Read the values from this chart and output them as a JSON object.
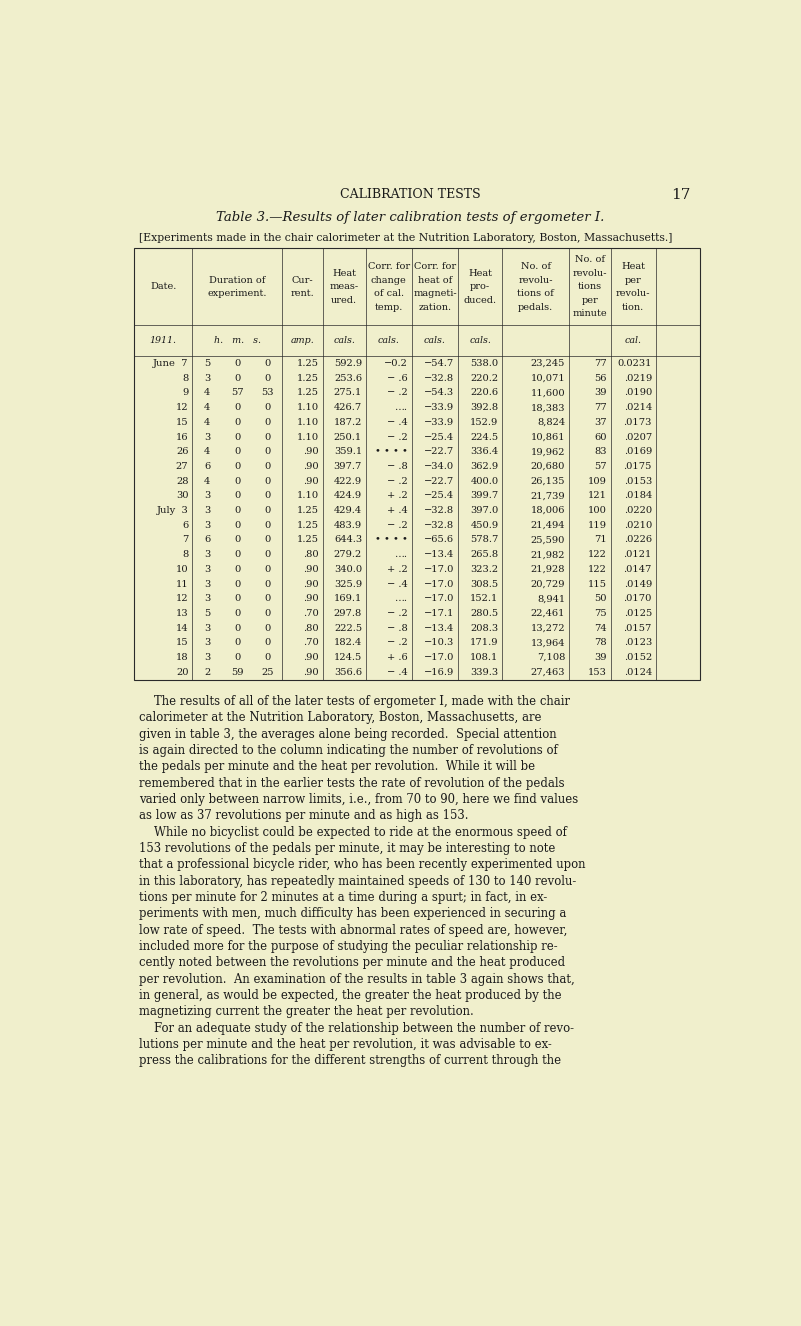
{
  "bg_color": "#f0efcc",
  "page_number": "17",
  "header": "CALIBRATION TESTS",
  "table_title": "Table 3.—Results of later calibration tests of ergometer I.",
  "table_subtitle": "[Experiments made in the chair calorimeter at the Nutrition Laboratory, Boston, Massachusetts.]",
  "col_header_texts": [
    [
      "Date."
    ],
    [
      "Duration of",
      "experiment."
    ],
    [
      "Cur-",
      "rent."
    ],
    [
      "Heat",
      "meas-",
      "ured."
    ],
    [
      "Corr. for",
      "change",
      "of cal.",
      "temp."
    ],
    [
      "Corr. for",
      "heat of",
      "magneti-",
      "zation."
    ],
    [
      "Heat",
      "pro-",
      "duced."
    ],
    [
      "No. of",
      "revolu-",
      "tions of",
      "pedals."
    ],
    [
      "No. of",
      "revolu-",
      "tions",
      "per",
      "minute"
    ],
    [
      "Heat",
      "per",
      "revolu-",
      "tion."
    ]
  ],
  "units_texts": [
    "1911.",
    "h.   m.   s.",
    "amp.",
    "cals.",
    "cals.",
    "cals.",
    "cals.",
    "",
    "",
    "cal."
  ],
  "rows": [
    [
      "June  7",
      "5   0   0",
      "1.25",
      "592.9",
      "−0.2",
      "−54.7",
      "538.0",
      "23,245",
      "77",
      "0.0231"
    ],
    [
      "8",
      "3   0   0",
      "1.25",
      "253.6",
      "− .6",
      "−32.8",
      "220.2",
      "10,071",
      "56",
      ".0219"
    ],
    [
      "9",
      "4  57  53",
      "1.25",
      "275.1",
      "− .2",
      "−54.3",
      "220.6",
      "11,600",
      "39",
      ".0190"
    ],
    [
      "12",
      "4   0   0",
      "1.10",
      "426.7",
      "….",
      "−33.9",
      "392.8",
      "18,383",
      "77",
      ".0214"
    ],
    [
      "15",
      "4   0   0",
      "1.10",
      "187.2",
      "− .4",
      "−33.9",
      "152.9",
      "8,824",
      "37",
      ".0173"
    ],
    [
      "16",
      "3   0   0",
      "1.10",
      "250.1",
      "− .2",
      "−25.4",
      "224.5",
      "10,861",
      "60",
      ".0207"
    ],
    [
      "26",
      "4   0   0",
      ".90",
      "359.1",
      "• • • •",
      "−22.7",
      "336.4",
      "19,962",
      "83",
      ".0169"
    ],
    [
      "27",
      "6   0   0",
      ".90",
      "397.7",
      "− .8",
      "−34.0",
      "362.9",
      "20,680",
      "57",
      ".0175"
    ],
    [
      "28",
      "4   0   0",
      ".90",
      "422.9",
      "− .2",
      "−22.7",
      "400.0",
      "26,135",
      "109",
      ".0153"
    ],
    [
      "30",
      "3   0   0",
      "1.10",
      "424.9",
      "+ .2",
      "−25.4",
      "399.7",
      "21,739",
      "121",
      ".0184"
    ],
    [
      "July  3",
      "3   0   0",
      "1.25",
      "429.4",
      "+ .4",
      "−32.8",
      "397.0",
      "18,006",
      "100",
      ".0220"
    ],
    [
      "6",
      "3   0   0",
      "1.25",
      "483.9",
      "− .2",
      "−32.8",
      "450.9",
      "21,494",
      "119",
      ".0210"
    ],
    [
      "7",
      "6   0   0",
      "1.25",
      "644.3",
      "• • • •",
      "−65.6",
      "578.7",
      "25,590",
      "71",
      ".0226"
    ],
    [
      "8",
      "3   0   0",
      ".80",
      "279.2",
      "….",
      "−13.4",
      "265.8",
      "21,982",
      "122",
      ".0121"
    ],
    [
      "10",
      "3   0   0",
      ".90",
      "340.0",
      "+ .2",
      "−17.0",
      "323.2",
      "21,928",
      "122",
      ".0147"
    ],
    [
      "11",
      "3   0   0",
      ".90",
      "325.9",
      "− .4",
      "−17.0",
      "308.5",
      "20,729",
      "115",
      ".0149"
    ],
    [
      "12",
      "3   0   0",
      ".90",
      "169.1",
      "….",
      "−17.0",
      "152.1",
      "8,941",
      "50",
      ".0170"
    ],
    [
      "13",
      "5   0   0",
      ".70",
      "297.8",
      "− .2",
      "−17.1",
      "280.5",
      "22,461",
      "75",
      ".0125"
    ],
    [
      "14",
      "3   0   0",
      ".80",
      "222.5",
      "− .8",
      "−13.4",
      "208.3",
      "13,272",
      "74",
      ".0157"
    ],
    [
      "15",
      "3   0   0",
      ".70",
      "182.4",
      "− .2",
      "−10.3",
      "171.9",
      "13,964",
      "78",
      ".0123"
    ],
    [
      "18",
      "3   0   0",
      ".90",
      "124.5",
      "+ .6",
      "−17.0",
      "108.1",
      "7,108",
      "39",
      ".0152"
    ],
    [
      "20",
      "2  59  25",
      ".90",
      "356.6",
      "− .4",
      "−16.9",
      "339.3",
      "27,463",
      "153",
      ".0124"
    ]
  ],
  "body_text": [
    "    The results of all of the later tests of ergometer I, made with the chair",
    "calorimeter at the Nutrition Laboratory, Boston, Massachusetts, are",
    "given in table 3, the averages alone being recorded.  Special attention",
    "is again directed to the column indicating the number of revolutions of",
    "the pedals per minute and the heat per revolution.  While it will be",
    "remembered that in the earlier tests the rate of revolution of the pedals",
    "varied only between narrow limits, i.e., from 70 to 90, here we find values",
    "as low as 37 revolutions per minute and as high as 153.",
    "    While no bicyclist could be expected to ride at the enormous speed of",
    "153 revolutions of the pedals per minute, it may be interesting to note",
    "that a professional bicycle rider, who has been recently experimented upon",
    "in this laboratory, has repeatedly maintained speeds of 130 to 140 revolu-",
    "tions per minute for 2 minutes at a time during a spurt; in fact, in ex-",
    "periments with men, much difficulty has been experienced in securing a",
    "low rate of speed.  The tests with abnormal rates of speed are, however,",
    "included more for the purpose of studying the peculiar relationship re-",
    "cently noted between the revolutions per minute and the heat produced",
    "per revolution.  An examination of the results in table 3 again shows that,",
    "in general, as would be expected, the greater the heat produced by the",
    "magnetizing current the greater the heat per revolution.",
    "    For an adequate study of the relationship between the number of revo-",
    "lutions per minute and the heat per revolution, it was advisable to ex-",
    "press the calibrations for the different strengths of current through the"
  ]
}
